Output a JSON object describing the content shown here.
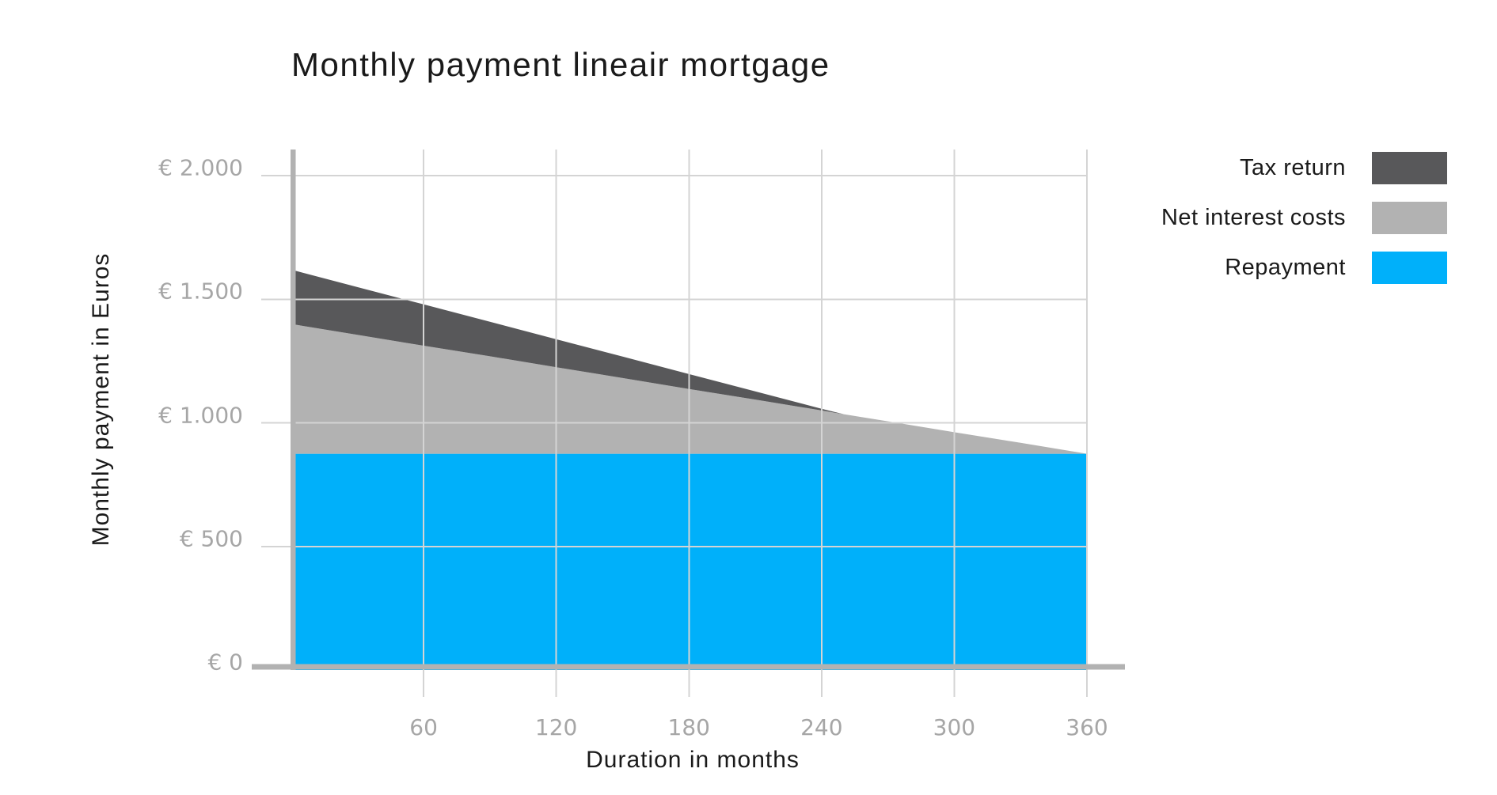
{
  "title": "Monthly payment lineair mortgage",
  "axes": {
    "x_title": "Duration in months",
    "y_title": "Monthly payment in Euros",
    "x_ticks": [
      {
        "label": "60",
        "value": 60
      },
      {
        "label": "120",
        "value": 120
      },
      {
        "label": "180",
        "value": 180
      },
      {
        "label": "240",
        "value": 240
      },
      {
        "label": "300",
        "value": 300
      },
      {
        "label": "360",
        "value": 360
      }
    ],
    "y_ticks": [
      {
        "label": "€ 2.000",
        "value": 2000
      },
      {
        "label": "€ 1.500",
        "value": 1500
      },
      {
        "label": "€ 1.000",
        "value": 1000
      },
      {
        "label": "€ 500",
        "value": 500
      },
      {
        "label": "€ 0",
        "value": 0
      }
    ]
  },
  "legend": {
    "items": [
      {
        "label": "Tax return",
        "color": "#58585a"
      },
      {
        "label": "Net interest costs",
        "color": "#b2b2b2"
      },
      {
        "label": "Repayment",
        "color": "#00b0fa"
      }
    ]
  },
  "colors": {
    "axis_bar": "#b2b2b2",
    "gridline": "#d4d4d4",
    "tick_label": "#a6a6a6",
    "text": "#1a1a1a",
    "background": "#ffffff"
  },
  "chart_data": {
    "type": "area",
    "stacked": true,
    "title": "Monthly payment lineair mortgage",
    "xlabel": "Duration in months",
    "ylabel": "Monthly payment in Euros",
    "xlim": [
      0,
      377
    ],
    "ylim": [
      0,
      2100
    ],
    "x_tick_values": [
      60,
      120,
      180,
      240,
      300,
      360
    ],
    "y_tick_values": [
      0,
      500,
      1000,
      1500,
      2000
    ],
    "grid": true,
    "legend_position": "top-right outside plot",
    "x": [
      0,
      30,
      60,
      90,
      120,
      150,
      180,
      210,
      240,
      250,
      270,
      300,
      330,
      360
    ],
    "series": [
      {
        "name": "Repayment",
        "color": "#00b0fa",
        "band_values": [
          875,
          875,
          875,
          875,
          875,
          875,
          875,
          875,
          875,
          875,
          875,
          875,
          875,
          875
        ]
      },
      {
        "name": "Net interest costs",
        "color": "#b2b2b2",
        "band_values": [
          525,
          481,
          437,
          394,
          350,
          306,
          262,
          219,
          175,
          160,
          131,
          87,
          44,
          0
        ]
      },
      {
        "name": "Tax return",
        "color": "#58585a",
        "band_values": [
          220,
          193,
          167,
          140,
          113,
          87,
          60,
          33,
          7,
          0,
          0,
          0,
          0,
          0
        ]
      }
    ],
    "estimated_summary": {
      "monthly_repayment_eur": 875,
      "initial_gross_total_eur": 1620,
      "initial_net_total_eur": 1400,
      "tax_return_zero_from_month": 250
    }
  }
}
